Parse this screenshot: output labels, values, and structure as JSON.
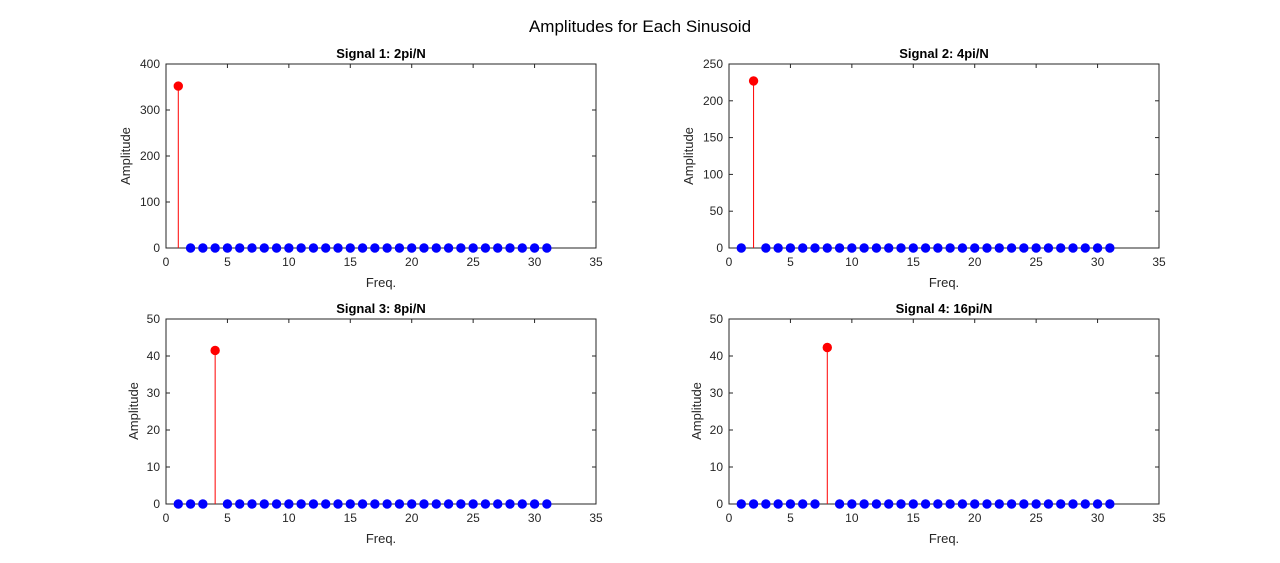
{
  "figure": {
    "title": "Amplitudes for Each Sinusoid"
  },
  "colors": {
    "highlight": "#ff0000",
    "base": "#0000ff",
    "axis": "#262626"
  },
  "chart_data": [
    {
      "type": "stem",
      "title": "Signal 1: 2pi/N",
      "xlabel": "Freq.",
      "ylabel": "Amplitude",
      "xlim": [
        0,
        35
      ],
      "ylim": [
        0,
        400
      ],
      "xticks": [
        0,
        5,
        10,
        15,
        20,
        25,
        30,
        35
      ],
      "yticks": [
        0,
        100,
        200,
        300,
        400
      ],
      "grid": false,
      "x": [
        1,
        2,
        3,
        4,
        5,
        6,
        7,
        8,
        9,
        10,
        11,
        12,
        13,
        14,
        15,
        16,
        17,
        18,
        19,
        20,
        21,
        22,
        23,
        24,
        25,
        26,
        27,
        28,
        29,
        30,
        31
      ],
      "values": [
        352,
        0,
        0,
        0,
        0,
        0,
        0,
        0,
        0,
        0,
        0,
        0,
        0,
        0,
        0,
        0,
        0,
        0,
        0,
        0,
        0,
        0,
        0,
        0,
        0,
        0,
        0,
        0,
        0,
        0,
        0
      ],
      "highlight_x": 1
    },
    {
      "type": "stem",
      "title": "Signal 2: 4pi/N",
      "xlabel": "Freq.",
      "ylabel": "Amplitude",
      "xlim": [
        0,
        35
      ],
      "ylim": [
        0,
        250
      ],
      "xticks": [
        0,
        5,
        10,
        15,
        20,
        25,
        30,
        35
      ],
      "yticks": [
        0,
        50,
        100,
        150,
        200,
        250
      ],
      "grid": false,
      "x": [
        1,
        2,
        3,
        4,
        5,
        6,
        7,
        8,
        9,
        10,
        11,
        12,
        13,
        14,
        15,
        16,
        17,
        18,
        19,
        20,
        21,
        22,
        23,
        24,
        25,
        26,
        27,
        28,
        29,
        30,
        31
      ],
      "values": [
        0,
        227,
        0,
        0,
        0,
        0,
        0,
        0,
        0,
        0,
        0,
        0,
        0,
        0,
        0,
        0,
        0,
        0,
        0,
        0,
        0,
        0,
        0,
        0,
        0,
        0,
        0,
        0,
        0,
        0,
        0
      ],
      "highlight_x": 2
    },
    {
      "type": "stem",
      "title": "Signal 3: 8pi/N",
      "xlabel": "Freq.",
      "ylabel": "Amplitude",
      "xlim": [
        0,
        35
      ],
      "ylim": [
        0,
        50
      ],
      "xticks": [
        0,
        5,
        10,
        15,
        20,
        25,
        30,
        35
      ],
      "yticks": [
        0,
        10,
        20,
        30,
        40,
        50
      ],
      "grid": false,
      "x": [
        1,
        2,
        3,
        4,
        5,
        6,
        7,
        8,
        9,
        10,
        11,
        12,
        13,
        14,
        15,
        16,
        17,
        18,
        19,
        20,
        21,
        22,
        23,
        24,
        25,
        26,
        27,
        28,
        29,
        30,
        31
      ],
      "values": [
        0,
        0,
        0,
        41.5,
        0,
        0,
        0,
        0,
        0,
        0,
        0,
        0,
        0,
        0,
        0,
        0,
        0,
        0,
        0,
        0,
        0,
        0,
        0,
        0,
        0,
        0,
        0,
        0,
        0,
        0,
        0
      ],
      "highlight_x": 4
    },
    {
      "type": "stem",
      "title": "Signal 4: 16pi/N",
      "xlabel": "Freq.",
      "ylabel": "Amplitude",
      "xlim": [
        0,
        35
      ],
      "ylim": [
        0,
        50
      ],
      "xticks": [
        0,
        5,
        10,
        15,
        20,
        25,
        30,
        35
      ],
      "yticks": [
        0,
        10,
        20,
        30,
        40,
        50
      ],
      "grid": false,
      "x": [
        1,
        2,
        3,
        4,
        5,
        6,
        7,
        8,
        9,
        10,
        11,
        12,
        13,
        14,
        15,
        16,
        17,
        18,
        19,
        20,
        21,
        22,
        23,
        24,
        25,
        26,
        27,
        28,
        29,
        30,
        31
      ],
      "values": [
        0,
        0,
        0,
        0,
        0,
        0,
        0,
        42.3,
        0,
        0,
        0,
        0,
        0,
        0,
        0,
        0,
        0,
        0,
        0,
        0,
        0,
        0,
        0,
        0,
        0,
        0,
        0,
        0,
        0,
        0,
        0
      ],
      "highlight_x": 8
    }
  ]
}
